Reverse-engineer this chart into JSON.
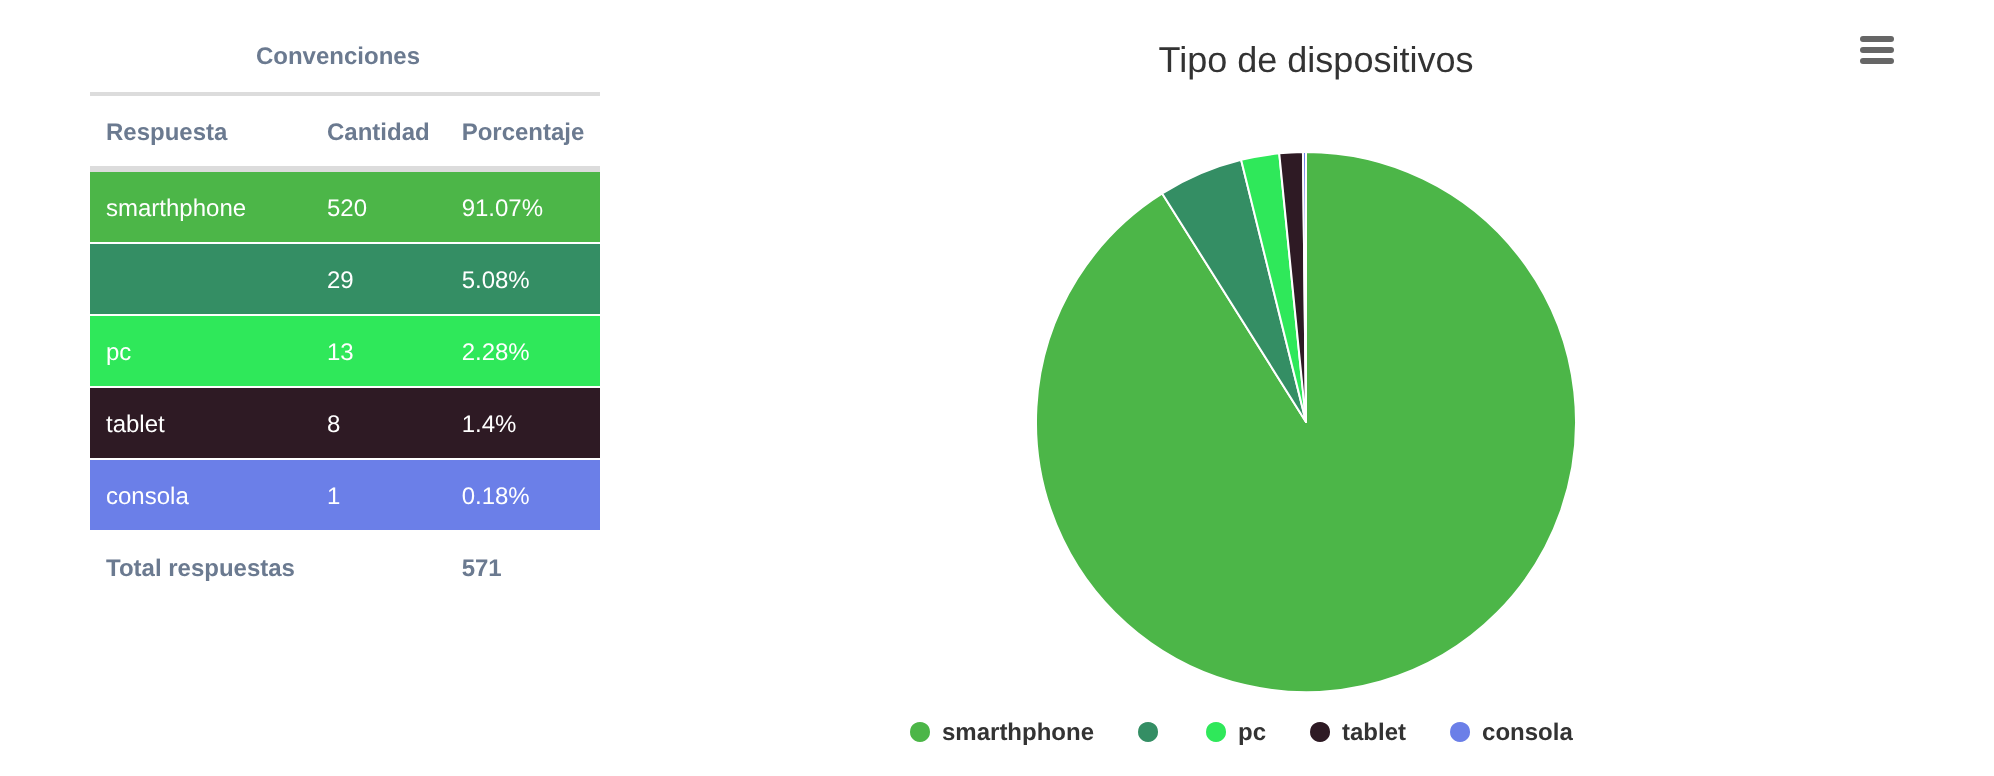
{
  "chart_data": {
    "type": "pie",
    "title": "Tipo de dispositivos",
    "categories": [
      "smarthphone",
      null,
      "pc",
      "tablet",
      "consola"
    ],
    "values": [
      91.07,
      5.08,
      2.28,
      1.4,
      0.18
    ],
    "colors": [
      "#4cb648",
      "#348e64",
      "#2fe85a",
      "#2e1a24",
      "#6b7fe8"
    ],
    "legend": "bottom",
    "annotations": [
      "Convenciones",
      "Respuesta",
      "Cantidad",
      "Porcentaje",
      "520",
      "91.07%",
      "29",
      "5.08%",
      "13",
      "2.28%",
      "8",
      "1.4%",
      "1",
      "0.18%",
      "Total respuestas",
      "571"
    ]
  }
}
